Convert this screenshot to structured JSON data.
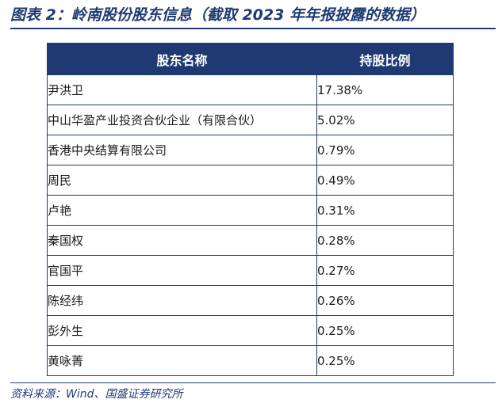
{
  "title": "图表 2：岭南股份股东信息（截取 2023 年年报披露的数据）",
  "table": {
    "headers": [
      "股东名称",
      "持股比例"
    ],
    "rows": [
      {
        "name": "尹洪卫",
        "pct": "17.38%"
      },
      {
        "name": "中山华盈产业投资合伙企业（有限合伙）",
        "pct": "5.02%"
      },
      {
        "name": "香港中央结算有限公司",
        "pct": "0.79%"
      },
      {
        "name": "周民",
        "pct": "0.49%"
      },
      {
        "name": "卢艳",
        "pct": "0.31%"
      },
      {
        "name": "秦国权",
        "pct": "0.28%"
      },
      {
        "name": "官国平",
        "pct": "0.27%"
      },
      {
        "name": "陈经纬",
        "pct": "0.26%"
      },
      {
        "name": "彭外生",
        "pct": "0.25%"
      },
      {
        "name": "黄咏菁",
        "pct": "0.25%"
      }
    ]
  },
  "source": "资料来源：Wind、国盛证券研究所",
  "colors": {
    "accent": "#1f3a73",
    "header_text": "#ffffff"
  }
}
